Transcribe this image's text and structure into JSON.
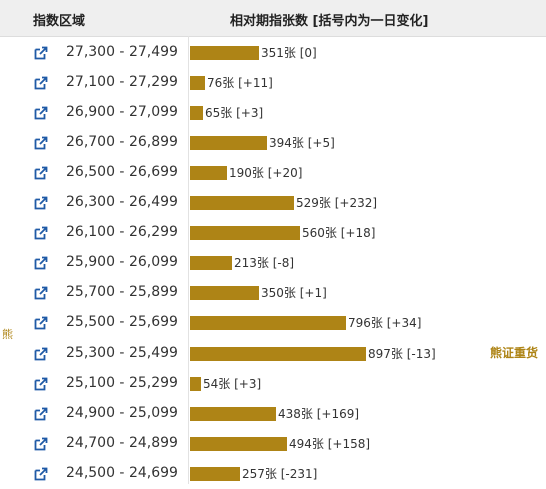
{
  "header": {
    "range_label": "指数区域",
    "chart_label": "相对期指张数 [括号内为一日变化]"
  },
  "side_left_label": "熊",
  "side_right_label": "熊证重货",
  "colors": {
    "bar": "#ae8416",
    "accent_text": "#ae8416"
  },
  "row_icon": "external-link-icon",
  "chart_data": {
    "type": "bar",
    "orientation": "horizontal",
    "categories": [
      "27,300 - 27,499",
      "27,100 - 27,299",
      "26,900 - 27,099",
      "26,700 - 26,899",
      "26,500 - 26,699",
      "26,300 - 26,499",
      "26,100 - 26,299",
      "25,900 - 26,099",
      "25,700 - 25,899",
      "25,500 - 25,699",
      "25,300 - 25,499",
      "25,100 - 25,299",
      "24,900 - 25,099",
      "24,700 - 24,899",
      "24,500 - 24,699"
    ],
    "values": [
      351,
      76,
      65,
      394,
      190,
      529,
      560,
      213,
      350,
      796,
      897,
      54,
      438,
      494,
      257
    ],
    "labels": [
      "351张 [0]",
      "76张 [+11]",
      "65张 [+3]",
      "394张 [+5]",
      "190张 [+20]",
      "529张 [+232]",
      "560张 [+18]",
      "213张 [-8]",
      "350张 [+1]",
      "796张 [+34]",
      "897张 [-13]",
      "54张 [+3]",
      "438张 [+169]",
      "494张 [+158]",
      "257张 [-231]"
    ],
    "title": "相对期指张数 [括号内为一日变化]",
    "xlabel": "",
    "ylabel": "指数区域"
  }
}
